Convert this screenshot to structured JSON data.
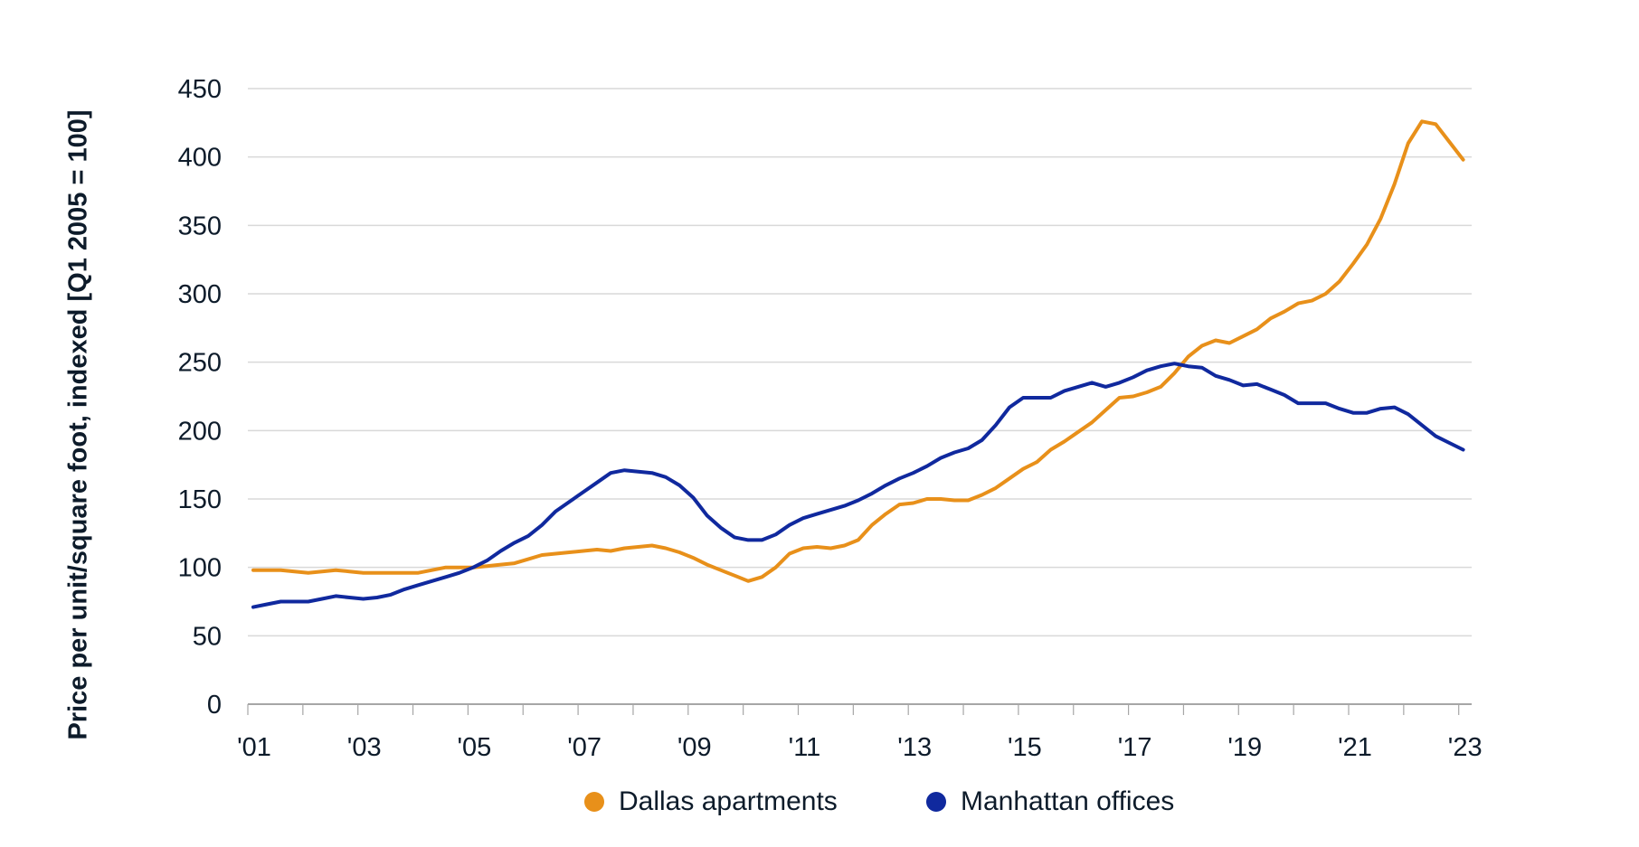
{
  "chart_data": {
    "type": "line",
    "title": "",
    "xlabel": "",
    "ylabel": "Price per unit/square foot, indexed [Q1 2005 = 100]",
    "ylim": [
      0,
      450
    ],
    "yticks": [
      "0",
      "50",
      "100",
      "150",
      "200",
      "250",
      "300",
      "350",
      "400",
      "450"
    ],
    "xticks": [
      "'01",
      "'03",
      "'05",
      "'07",
      "'09",
      "'11",
      "'13",
      "'15",
      "'17",
      "'19",
      "'21",
      "'23"
    ],
    "x_range": [
      "2001 Q1",
      "2023 Q1"
    ],
    "x_frequency": "quarterly",
    "grid": "horizontal",
    "legend_position": "bottom",
    "series": [
      {
        "name": "Dallas apartments",
        "color": "#E8901A",
        "values": [
          98,
          98,
          98,
          97,
          96,
          97,
          98,
          97,
          96,
          96,
          96,
          96,
          96,
          98,
          100,
          100,
          100,
          101,
          102,
          103,
          106,
          109,
          110,
          111,
          112,
          113,
          112,
          114,
          115,
          116,
          114,
          111,
          107,
          102,
          98,
          94,
          90,
          93,
          100,
          110,
          114,
          115,
          114,
          116,
          120,
          131,
          139,
          146,
          147,
          150,
          150,
          149,
          149,
          153,
          158,
          165,
          172,
          177,
          186,
          192,
          199,
          206,
          215,
          224,
          225,
          228,
          232,
          242,
          254,
          262,
          266,
          264,
          269,
          274,
          282,
          287,
          293,
          295,
          300,
          309,
          322,
          336,
          355,
          380,
          410,
          426,
          424,
          411,
          398
        ]
      },
      {
        "name": "Manhattan offices",
        "color": "#10299E",
        "values": [
          71,
          73,
          75,
          75,
          75,
          77,
          79,
          78,
          77,
          78,
          80,
          84,
          87,
          90,
          93,
          96,
          100,
          105,
          112,
          118,
          123,
          131,
          141,
          148,
          155,
          162,
          169,
          171,
          170,
          169,
          166,
          160,
          151,
          138,
          129,
          122,
          120,
          120,
          124,
          131,
          136,
          139,
          142,
          145,
          149,
          154,
          160,
          165,
          169,
          174,
          180,
          184,
          187,
          193,
          204,
          217,
          224,
          224,
          224,
          229,
          232,
          235,
          232,
          235,
          239,
          244,
          247,
          249,
          247,
          246,
          240,
          237,
          233,
          234,
          230,
          226,
          220,
          220,
          220,
          216,
          213,
          213,
          216,
          217,
          212,
          204,
          196,
          191,
          186
        ]
      }
    ]
  }
}
